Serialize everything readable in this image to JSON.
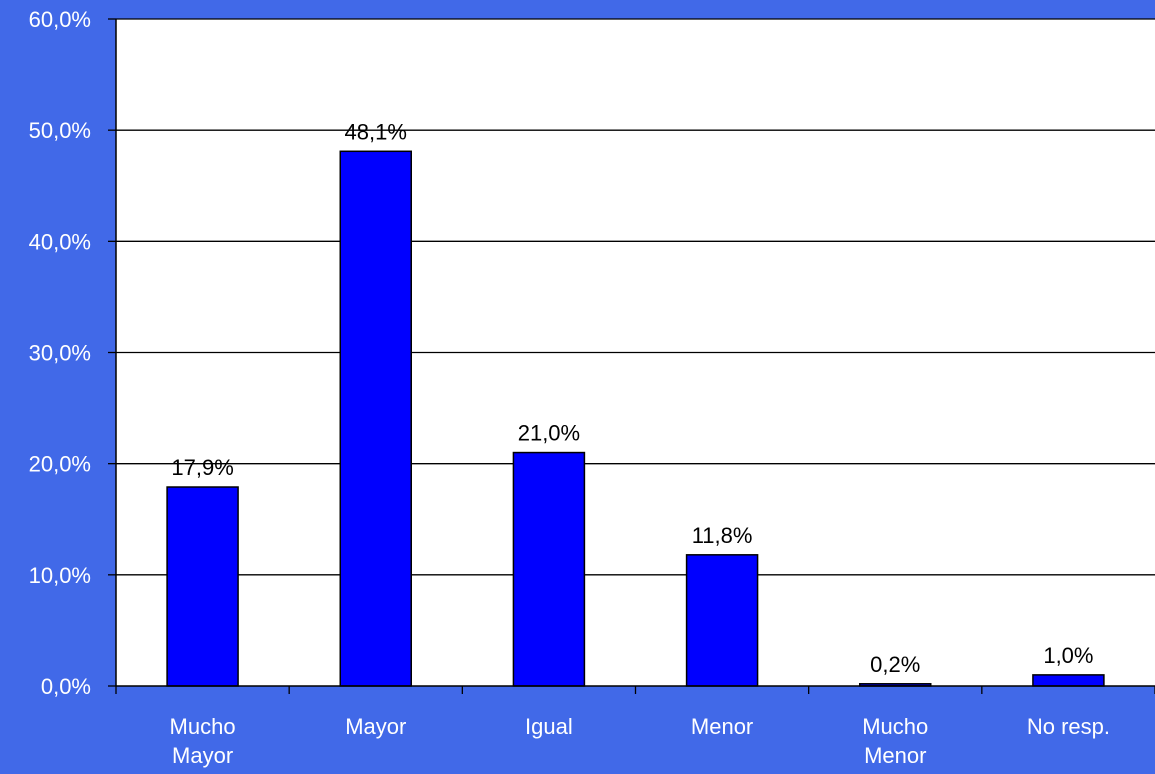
{
  "colors": {
    "background": "#4169e8",
    "plot_area": "#ffffff",
    "bar_fill": "#0000ff",
    "bar_stroke": "#000000",
    "axis_text": "#ffffff",
    "label_text": "#000000"
  },
  "chart_data": {
    "type": "bar",
    "title": "",
    "xlabel": "",
    "ylabel": "",
    "categories": [
      [
        "Mucho",
        "Mayor"
      ],
      [
        "Mayor"
      ],
      [
        "Igual"
      ],
      [
        "Menor"
      ],
      [
        "Mucho",
        "Menor"
      ],
      [
        "No resp."
      ]
    ],
    "values": [
      17.9,
      48.1,
      21.0,
      11.8,
      0.2,
      1.0
    ],
    "data_labels": [
      "17,9%",
      "48,1%",
      "21,0%",
      "11,8%",
      "0,2%",
      "1,0%"
    ],
    "ylim": [
      0,
      60
    ],
    "yticks": [
      0,
      10,
      20,
      30,
      40,
      50,
      60
    ],
    "ytick_labels": [
      "0,0%",
      "10,0%",
      "20,0%",
      "30,0%",
      "40,0%",
      "50,0%",
      "60,0%"
    ],
    "grid": true,
    "legend": "none"
  }
}
